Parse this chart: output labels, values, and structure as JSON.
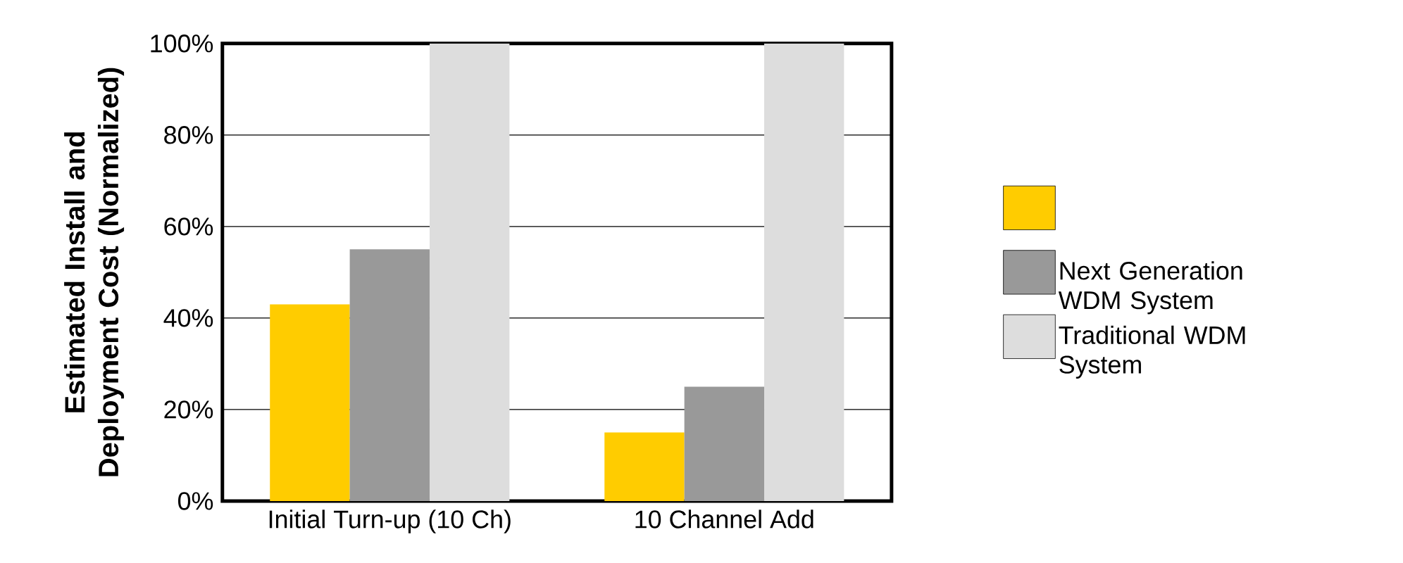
{
  "chart_data": {
    "type": "bar",
    "ylabel": "Estimated Install and Deployment Cost (Normalized)",
    "categories": [
      "Initial Turn-up (10 Ch)",
      "10 Channel Add"
    ],
    "series": [
      {
        "color": "#ffcc00",
        "values": [
          43,
          15
        ]
      },
      {
        "name": "Next Generation WDM System",
        "color": "#999999",
        "values": [
          55,
          25
        ]
      },
      {
        "name": "Traditional WDM System",
        "color": "#dddddd",
        "values": [
          100,
          100
        ]
      }
    ],
    "ylim": [
      0,
      100
    ],
    "yticks": [
      {
        "value": 0,
        "label": "0%"
      },
      {
        "value": 20,
        "label": "20%"
      },
      {
        "value": 40,
        "label": "40%"
      },
      {
        "value": 60,
        "label": "60%"
      },
      {
        "value": 80,
        "label": "80%"
      },
      {
        "value": 100,
        "label": "100%"
      }
    ],
    "grid": "y",
    "legend": "right"
  }
}
